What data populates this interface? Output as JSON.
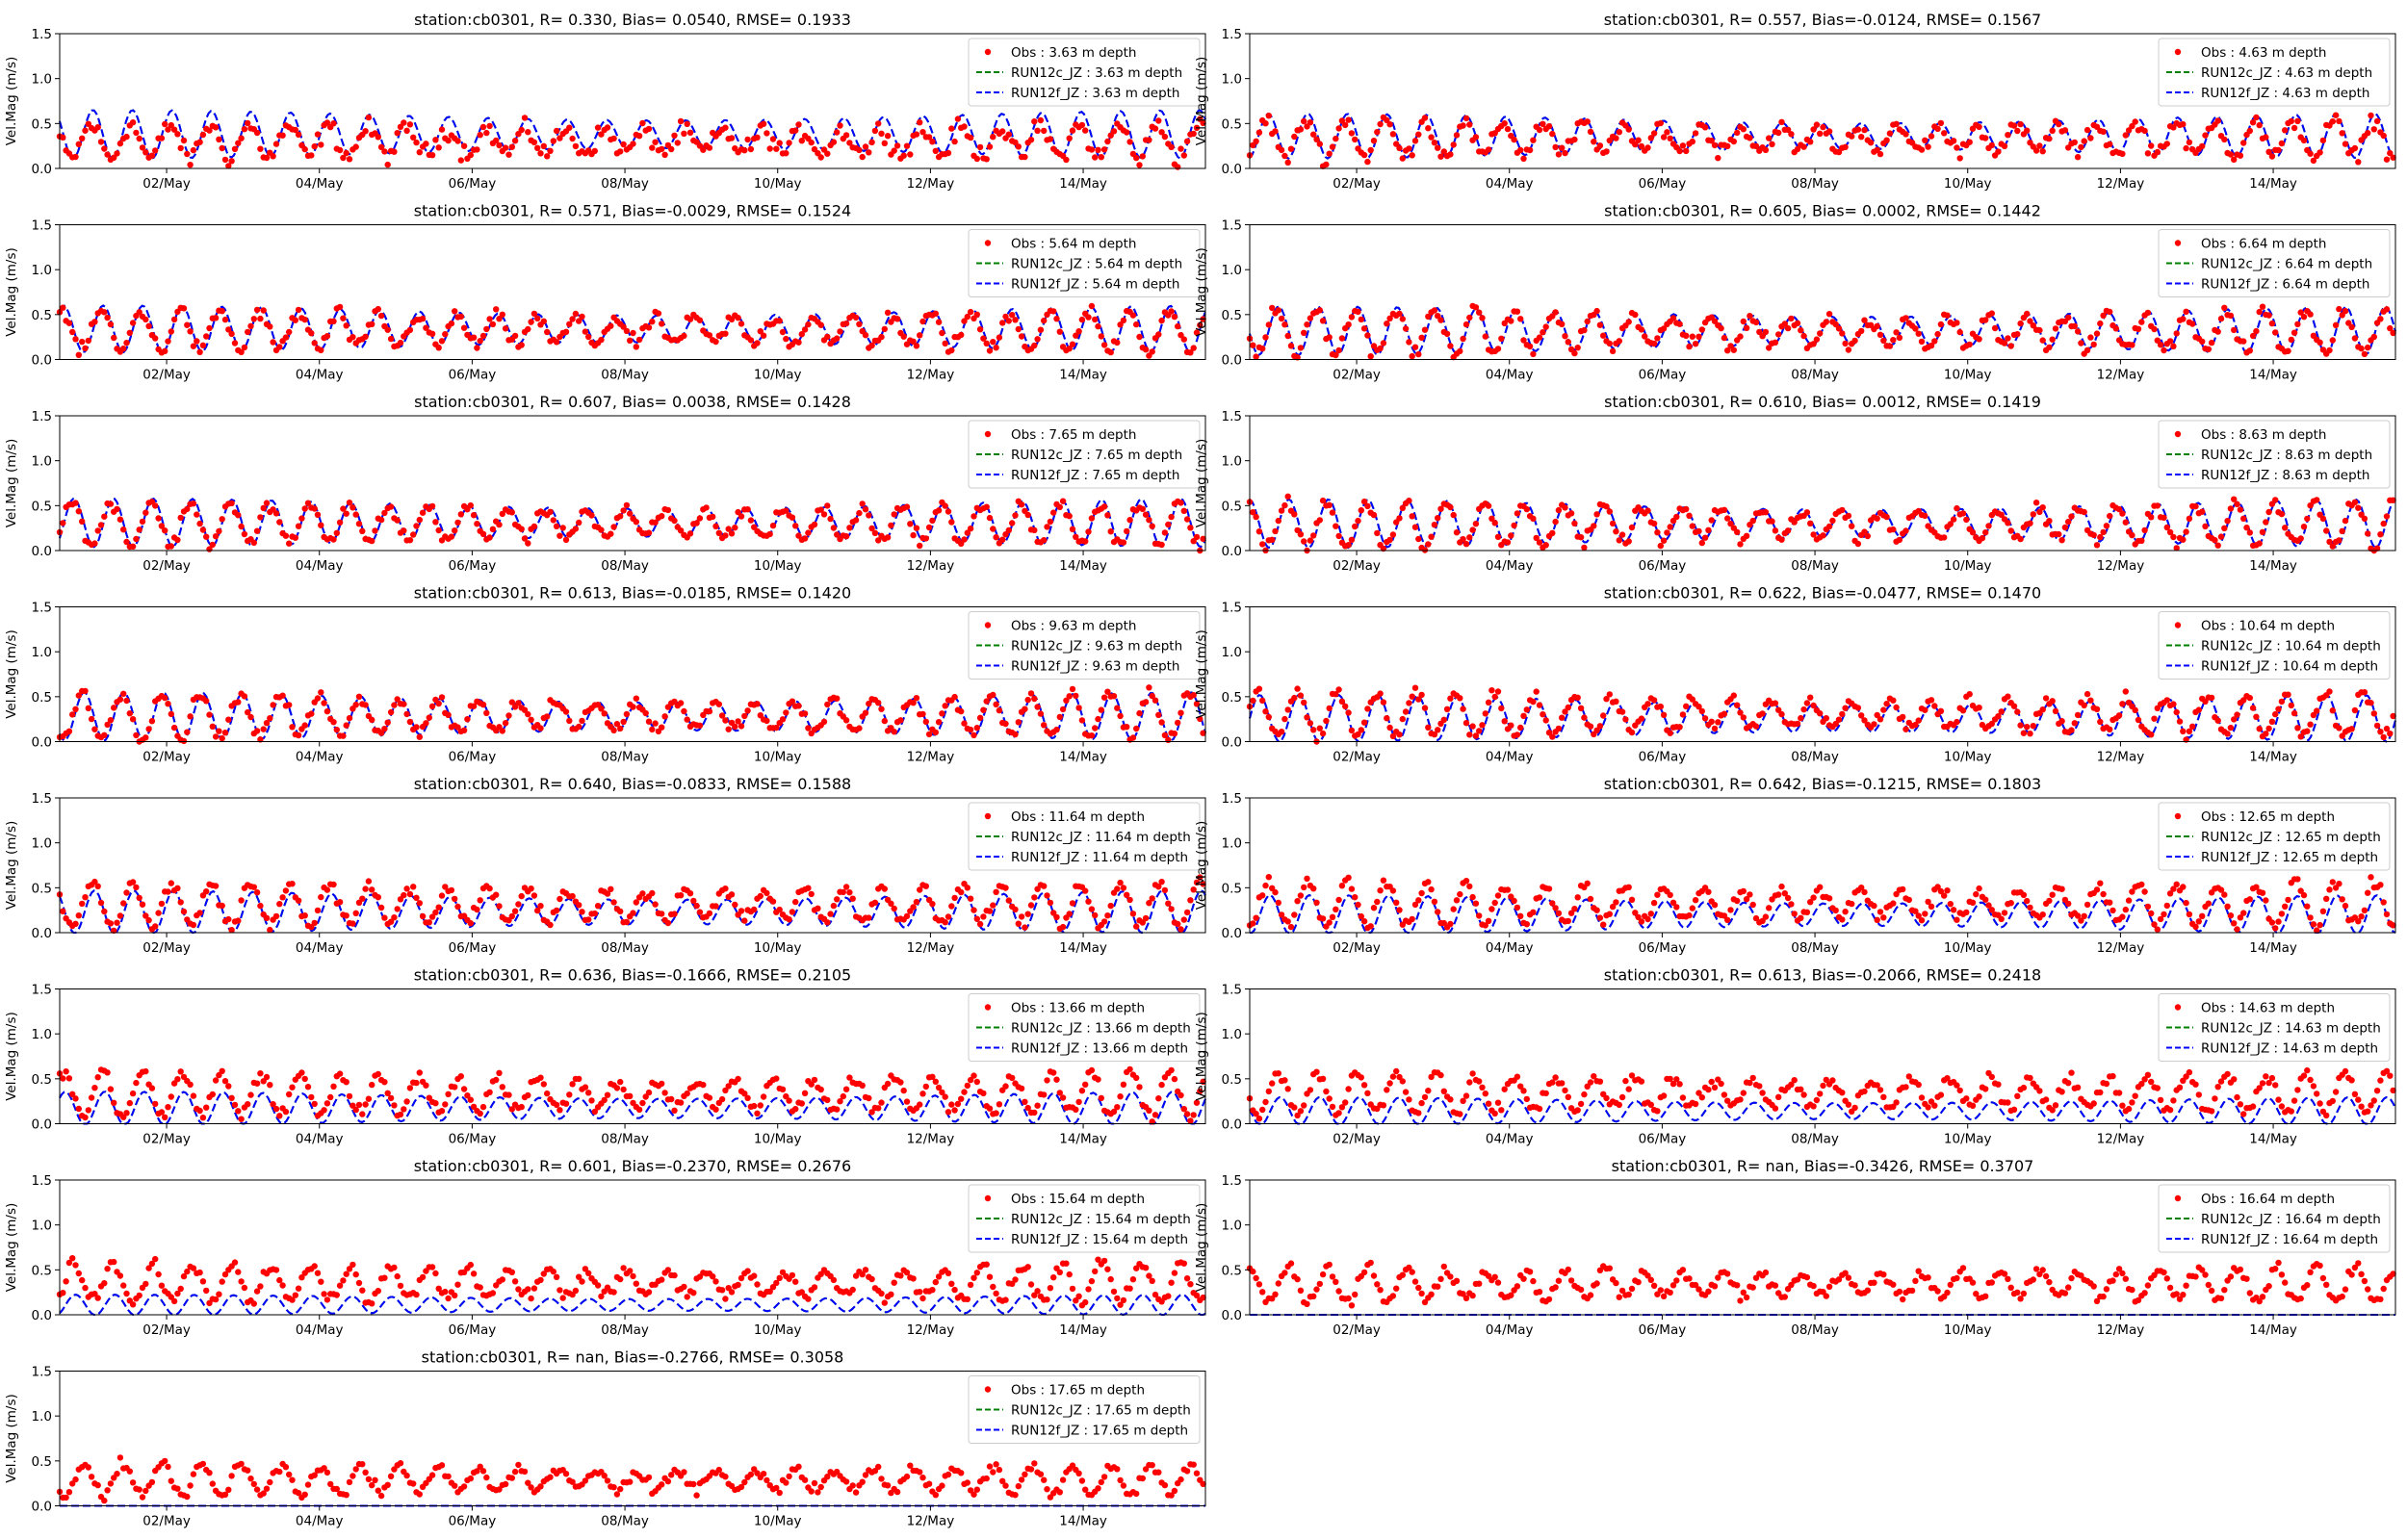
{
  "chart_data": {
    "type": "scatter",
    "station": "cb0301",
    "ylabel": "Vel.Mag (m/s)",
    "ylim": [
      0,
      1.5
    ],
    "yticks": [
      "0.0",
      "0.5",
      "1.0",
      "1.5"
    ],
    "xlim_days": [
      0.6,
      15.6
    ],
    "xtick_days": [
      2,
      4,
      6,
      8,
      10,
      12,
      14
    ],
    "xticks": [
      "02/May",
      "04/May",
      "06/May",
      "08/May",
      "10/May",
      "12/May",
      "14/May"
    ],
    "colors": {
      "obs": "#ff0000",
      "run12c": "#008000",
      "run12f": "#0000ff"
    },
    "panels": [
      {
        "title": "station:cb0301, R= 0.330, Bias= 0.0540, RMSE= 0.1933",
        "legend": [
          "Obs : 3.63 m depth",
          "RUN12c_JZ : 3.63 m depth",
          "RUN12f_JZ : 3.63 m depth"
        ],
        "obs": {
          "mean": 0.3,
          "amp": 0.18,
          "noise": 0.12
        },
        "model": {
          "mean": 0.38,
          "amp": 0.26
        }
      },
      {
        "title": "station:cb0301, R= 0.557, Bias=-0.0124, RMSE= 0.1567",
        "legend": [
          "Obs : 4.63 m depth",
          "RUN12c_JZ : 4.63 m depth",
          "RUN12f_JZ : 4.63 m depth"
        ],
        "obs": {
          "mean": 0.33,
          "amp": 0.2,
          "noise": 0.1
        },
        "model": {
          "mean": 0.36,
          "amp": 0.24
        }
      },
      {
        "title": "station:cb0301, R= 0.571, Bias=-0.0029, RMSE= 0.1524",
        "legend": [
          "Obs : 5.64 m depth",
          "RUN12c_JZ : 5.64 m depth",
          "RUN12f_JZ : 5.64 m depth"
        ],
        "obs": {
          "mean": 0.32,
          "amp": 0.22,
          "noise": 0.09
        },
        "model": {
          "mean": 0.34,
          "amp": 0.25
        }
      },
      {
        "title": "station:cb0301, R= 0.605, Bias= 0.0002, RMSE= 0.1442",
        "legend": [
          "Obs : 6.64 m depth",
          "RUN12c_JZ : 6.64 m depth",
          "RUN12f_JZ : 6.64 m depth"
        ],
        "obs": {
          "mean": 0.31,
          "amp": 0.23,
          "noise": 0.09
        },
        "model": {
          "mean": 0.32,
          "amp": 0.26
        }
      },
      {
        "title": "station:cb0301, R= 0.607, Bias= 0.0038, RMSE= 0.1428",
        "legend": [
          "Obs : 7.65 m depth",
          "RUN12c_JZ : 7.65 m depth",
          "RUN12f_JZ : 7.65 m depth"
        ],
        "obs": {
          "mean": 0.3,
          "amp": 0.23,
          "noise": 0.08
        },
        "model": {
          "mean": 0.31,
          "amp": 0.26
        }
      },
      {
        "title": "station:cb0301, R= 0.610, Bias= 0.0012, RMSE= 0.1419",
        "legend": [
          "Obs : 8.63 m depth",
          "RUN12c_JZ : 8.63 m depth",
          "RUN12f_JZ : 8.63 m depth"
        ],
        "obs": {
          "mean": 0.29,
          "amp": 0.24,
          "noise": 0.08
        },
        "model": {
          "mean": 0.3,
          "amp": 0.26
        }
      },
      {
        "title": "station:cb0301, R= 0.613, Bias=-0.0185, RMSE= 0.1420",
        "legend": [
          "Obs : 9.63 m depth",
          "RUN12c_JZ : 9.63 m depth",
          "RUN12f_JZ : 9.63 m depth"
        ],
        "obs": {
          "mean": 0.29,
          "amp": 0.24,
          "noise": 0.08
        },
        "model": {
          "mean": 0.28,
          "amp": 0.26
        }
      },
      {
        "title": "station:cb0301, R= 0.622, Bias=-0.0477, RMSE= 0.1470",
        "legend": [
          "Obs : 10.64 m depth",
          "RUN12c_JZ : 10.64 m depth",
          "RUN12f_JZ : 10.64 m depth"
        ],
        "obs": {
          "mean": 0.3,
          "amp": 0.24,
          "noise": 0.08
        },
        "model": {
          "mean": 0.26,
          "amp": 0.25
        }
      },
      {
        "title": "station:cb0301, R= 0.640, Bias=-0.0833, RMSE= 0.1588",
        "legend": [
          "Obs : 11.64 m depth",
          "RUN12c_JZ : 11.64 m depth",
          "RUN12f_JZ : 11.64 m depth"
        ],
        "obs": {
          "mean": 0.31,
          "amp": 0.24,
          "noise": 0.08
        },
        "model": {
          "mean": 0.23,
          "amp": 0.23
        }
      },
      {
        "title": "station:cb0301, R= 0.642, Bias=-0.1215, RMSE= 0.1803",
        "legend": [
          "Obs : 12.65 m depth",
          "RUN12c_JZ : 12.65 m depth",
          "RUN12f_JZ : 12.65 m depth"
        ],
        "obs": {
          "mean": 0.32,
          "amp": 0.24,
          "noise": 0.08
        },
        "model": {
          "mean": 0.2,
          "amp": 0.21
        }
      },
      {
        "title": "station:cb0301, R= 0.636, Bias=-0.1666, RMSE= 0.2105",
        "legend": [
          "Obs : 13.66 m depth",
          "RUN12c_JZ : 13.66 m depth",
          "RUN12f_JZ : 13.66 m depth"
        ],
        "obs": {
          "mean": 0.33,
          "amp": 0.23,
          "noise": 0.08
        },
        "model": {
          "mean": 0.17,
          "amp": 0.18
        }
      },
      {
        "title": "station:cb0301, R= 0.613, Bias=-0.2066, RMSE= 0.2418",
        "legend": [
          "Obs : 14.63 m depth",
          "RUN12c_JZ : 14.63 m depth",
          "RUN12f_JZ : 14.63 m depth"
        ],
        "obs": {
          "mean": 0.34,
          "amp": 0.22,
          "noise": 0.08
        },
        "model": {
          "mean": 0.14,
          "amp": 0.15
        }
      },
      {
        "title": "station:cb0301, R= 0.601, Bias=-0.2370, RMSE= 0.2676",
        "legend": [
          "Obs : 15.64 m depth",
          "RUN12c_JZ : 15.64 m depth",
          "RUN12f_JZ : 15.64 m depth"
        ],
        "obs": {
          "mean": 0.35,
          "amp": 0.2,
          "noise": 0.08
        },
        "model": {
          "mean": 0.11,
          "amp": 0.11
        }
      },
      {
        "title": "station:cb0301, R=   nan, Bias=-0.3426, RMSE= 0.3707",
        "legend": [
          "Obs : 16.64 m depth",
          "RUN12c_JZ : 16.64 m depth",
          "RUN12f_JZ : 16.64 m depth"
        ],
        "obs": {
          "mean": 0.34,
          "amp": 0.18,
          "noise": 0.08
        },
        "model": {
          "mean": 0.0,
          "amp": 0.0
        }
      },
      {
        "title": "station:cb0301, R=   nan, Bias=-0.2766, RMSE= 0.3058",
        "legend": [
          "Obs : 17.65 m depth",
          "RUN12c_JZ : 17.65 m depth",
          "RUN12f_JZ : 17.65 m depth"
        ],
        "obs": {
          "mean": 0.29,
          "amp": 0.17,
          "noise": 0.07
        },
        "model": {
          "mean": 0.0,
          "amp": 0.0
        }
      }
    ]
  }
}
